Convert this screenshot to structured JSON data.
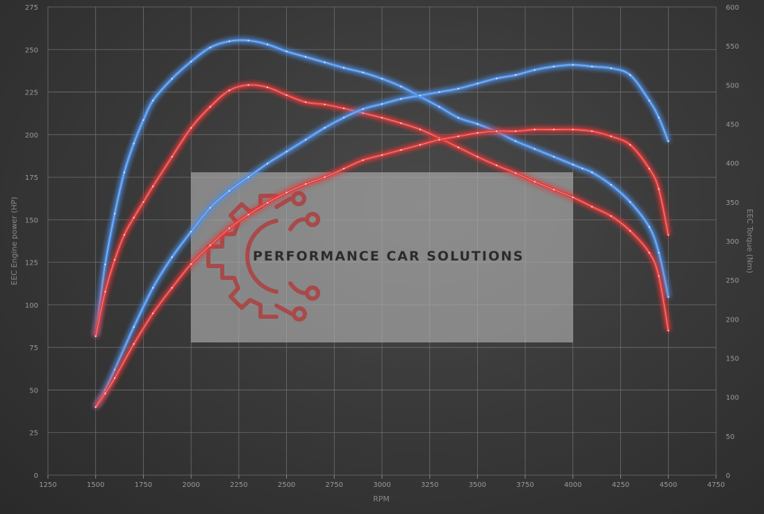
{
  "chart_data": {
    "type": "line",
    "title": "",
    "xlabel": "RPM",
    "ylabel_left": "EEC Engine power (HP)",
    "ylabel_right": "EEC Torque (Nm)",
    "xlim": [
      1250,
      4750
    ],
    "ylim_left": [
      0,
      275
    ],
    "ylim_right": [
      0,
      600
    ],
    "x_ticks": [
      1250,
      1500,
      1750,
      2000,
      2250,
      2500,
      2750,
      3000,
      3250,
      3500,
      3750,
      4000,
      4250,
      4500,
      4750
    ],
    "y_left_ticks": [
      0,
      25,
      50,
      75,
      100,
      125,
      150,
      175,
      200,
      225,
      250,
      275
    ],
    "y_right_ticks": [
      0,
      50,
      100,
      150,
      200,
      250,
      300,
      350,
      400,
      450,
      500,
      550,
      600
    ],
    "grid": true,
    "legend": "none",
    "series": [
      {
        "color": "#4f8fe6",
        "axis": "right",
        "points": [
          [
            1500,
            178
          ],
          [
            1550,
            270
          ],
          [
            1600,
            335
          ],
          [
            1650,
            388
          ],
          [
            1700,
            425
          ],
          [
            1750,
            455
          ],
          [
            1800,
            480
          ],
          [
            1900,
            508
          ],
          [
            2000,
            530
          ],
          [
            2100,
            548
          ],
          [
            2200,
            556
          ],
          [
            2300,
            557
          ],
          [
            2400,
            552
          ],
          [
            2500,
            543
          ],
          [
            2600,
            536
          ],
          [
            2700,
            529
          ],
          [
            2800,
            522
          ],
          [
            2900,
            516
          ],
          [
            3000,
            508
          ],
          [
            3100,
            498
          ],
          [
            3200,
            485
          ],
          [
            3300,
            472
          ],
          [
            3400,
            458
          ],
          [
            3500,
            450
          ],
          [
            3600,
            440
          ],
          [
            3700,
            428
          ],
          [
            3800,
            418
          ],
          [
            3900,
            408
          ],
          [
            4000,
            398
          ],
          [
            4050,
            393
          ],
          [
            4100,
            388
          ],
          [
            4200,
            372
          ],
          [
            4300,
            350
          ],
          [
            4400,
            318
          ],
          [
            4450,
            285
          ],
          [
            4500,
            228
          ]
        ]
      },
      {
        "color": "#e23b3b",
        "axis": "right",
        "points": [
          [
            1500,
            178
          ],
          [
            1550,
            235
          ],
          [
            1600,
            276
          ],
          [
            1650,
            308
          ],
          [
            1700,
            330
          ],
          [
            1750,
            350
          ],
          [
            1800,
            370
          ],
          [
            1900,
            408
          ],
          [
            2000,
            445
          ],
          [
            2100,
            472
          ],
          [
            2200,
            493
          ],
          [
            2300,
            500
          ],
          [
            2400,
            497
          ],
          [
            2500,
            487
          ],
          [
            2600,
            478
          ],
          [
            2700,
            475
          ],
          [
            2800,
            470
          ],
          [
            2900,
            464
          ],
          [
            3000,
            458
          ],
          [
            3100,
            451
          ],
          [
            3200,
            443
          ],
          [
            3300,
            432
          ],
          [
            3400,
            420
          ],
          [
            3500,
            408
          ],
          [
            3600,
            397
          ],
          [
            3700,
            387
          ],
          [
            3800,
            376
          ],
          [
            3900,
            366
          ],
          [
            4000,
            356
          ],
          [
            4100,
            344
          ],
          [
            4200,
            332
          ],
          [
            4300,
            313
          ],
          [
            4400,
            285
          ],
          [
            4450,
            255
          ],
          [
            4500,
            185
          ]
        ]
      },
      {
        "color": "#4f8fe6",
        "axis": "left",
        "points": [
          [
            1500,
            40
          ],
          [
            1550,
            50
          ],
          [
            1600,
            62
          ],
          [
            1700,
            87
          ],
          [
            1800,
            110
          ],
          [
            1900,
            128
          ],
          [
            2000,
            143
          ],
          [
            2100,
            157
          ],
          [
            2200,
            167
          ],
          [
            2300,
            175
          ],
          [
            2400,
            183
          ],
          [
            2500,
            190
          ],
          [
            2600,
            197
          ],
          [
            2700,
            204
          ],
          [
            2800,
            210
          ],
          [
            2900,
            215
          ],
          [
            3000,
            218
          ],
          [
            3100,
            221
          ],
          [
            3200,
            223
          ],
          [
            3300,
            225
          ],
          [
            3400,
            227
          ],
          [
            3500,
            230
          ],
          [
            3600,
            233
          ],
          [
            3700,
            235
          ],
          [
            3800,
            238
          ],
          [
            3900,
            240
          ],
          [
            4000,
            241
          ],
          [
            4100,
            240
          ],
          [
            4200,
            239
          ],
          [
            4300,
            235
          ],
          [
            4400,
            220
          ],
          [
            4450,
            210
          ],
          [
            4500,
            196
          ]
        ]
      },
      {
        "color": "#e23b3b",
        "axis": "left",
        "points": [
          [
            1500,
            40
          ],
          [
            1550,
            48
          ],
          [
            1600,
            57
          ],
          [
            1700,
            77
          ],
          [
            1800,
            95
          ],
          [
            1900,
            110
          ],
          [
            2000,
            124
          ],
          [
            2100,
            135
          ],
          [
            2200,
            145
          ],
          [
            2300,
            153
          ],
          [
            2400,
            160
          ],
          [
            2500,
            166
          ],
          [
            2600,
            171
          ],
          [
            2700,
            175
          ],
          [
            2800,
            180
          ],
          [
            2900,
            185
          ],
          [
            3000,
            188
          ],
          [
            3100,
            191
          ],
          [
            3200,
            194
          ],
          [
            3300,
            197
          ],
          [
            3400,
            199
          ],
          [
            3500,
            201
          ],
          [
            3600,
            202
          ],
          [
            3700,
            202
          ],
          [
            3800,
            203
          ],
          [
            3900,
            203
          ],
          [
            4000,
            203
          ],
          [
            4100,
            202
          ],
          [
            4200,
            199
          ],
          [
            4300,
            194
          ],
          [
            4400,
            180
          ],
          [
            4450,
            168
          ],
          [
            4500,
            141
          ]
        ]
      }
    ]
  },
  "watermark": {
    "text": "PERFORMANCE CAR SOLUTIONS",
    "logo_icon": "gear-circuit-logo-icon",
    "logo_color": "#a84a4a"
  }
}
